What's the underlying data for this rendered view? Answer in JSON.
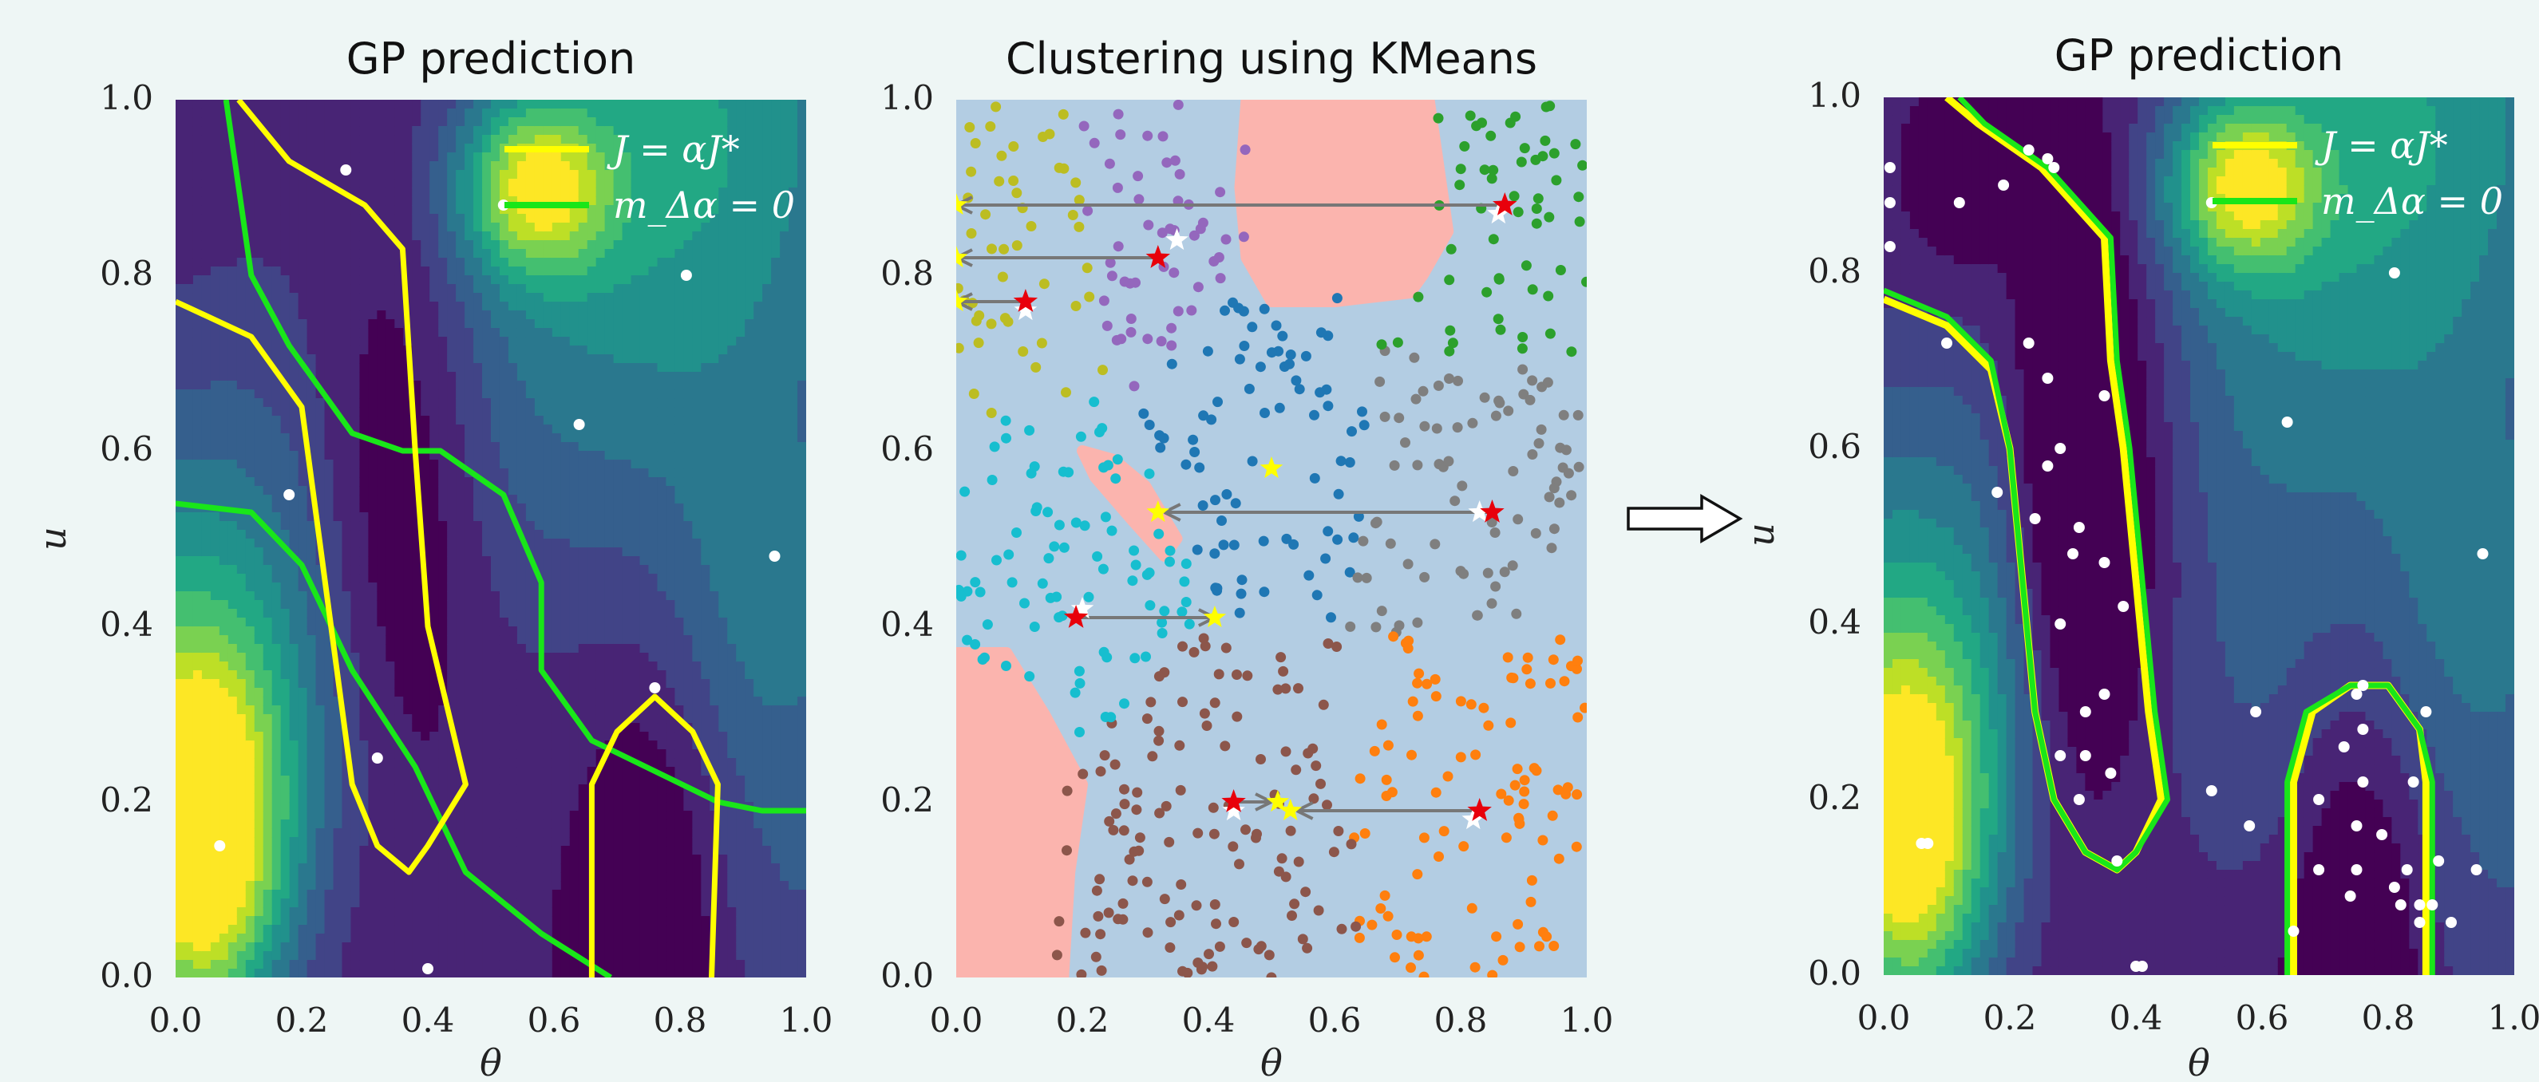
{
  "colors": {
    "viridis": [
      "#440154",
      "#482475",
      "#414487",
      "#355f8d",
      "#2a788e",
      "#21918c",
      "#22a884",
      "#44bf70",
      "#7ad151",
      "#bddf26",
      "#fde725"
    ],
    "cluster_bg": "#b3cde3",
    "infeasible": "#fbb4ae",
    "level_set": "#ffff00",
    "zero_mean": "#19e619",
    "arrow": "#777777",
    "star_red": "#e8000b",
    "star_yellow": "#ffff00",
    "star_white": "#ffffff"
  },
  "panels": [
    {
      "title": "GP prediction",
      "xlabel": "θ",
      "ylabel": "u"
    },
    {
      "title": "Clustering using KMeans",
      "xlabel": "θ",
      "ylabel": ""
    },
    {
      "title": "GP prediction",
      "xlabel": "θ",
      "ylabel": "u"
    }
  ],
  "legend": {
    "item1": "J = αJ*",
    "item2": "m_Δα = 0"
  },
  "axis_ticks": {
    "x": [
      "0.0",
      "0.2",
      "0.4",
      "0.6",
      "0.8",
      "1.0"
    ],
    "y": [
      "0.0",
      "0.2",
      "0.4",
      "0.6",
      "0.8",
      "1.0"
    ]
  },
  "arrow_glyph": "⇨",
  "chart_data": [
    {
      "type": "heatmap",
      "title": "GP prediction",
      "xlabel": "θ",
      "ylabel": "u",
      "xlim": [
        0,
        1
      ],
      "ylim": [
        0,
        1
      ],
      "legend": [
        "J = αJ*",
        "m_Δα = 0"
      ],
      "legend_placement": "top-right",
      "training_points": [
        [
          0.07,
          0.15
        ],
        [
          0.4,
          0.01
        ],
        [
          0.32,
          0.25
        ],
        [
          0.76,
          0.33
        ],
        [
          0.18,
          0.55
        ],
        [
          0.64,
          0.63
        ],
        [
          0.81,
          0.8
        ],
        [
          0.27,
          0.92
        ],
        [
          0.52,
          0.88
        ],
        [
          0.95,
          0.48
        ]
      ],
      "level_set_J": [
        [
          [
            0.1,
            1.0
          ],
          [
            0.18,
            0.93
          ],
          [
            0.3,
            0.88
          ],
          [
            0.36,
            0.83
          ],
          [
            0.38,
            0.6
          ],
          [
            0.4,
            0.4
          ],
          [
            0.46,
            0.22
          ],
          [
            0.4,
            0.15
          ],
          [
            0.37,
            0.12
          ],
          [
            0.32,
            0.15
          ],
          [
            0.28,
            0.22
          ],
          [
            0.2,
            0.65
          ],
          [
            0.12,
            0.73
          ],
          [
            0.0,
            0.77
          ]
        ],
        [
          [
            0.66,
            0.0
          ],
          [
            0.66,
            0.22
          ],
          [
            0.7,
            0.28
          ],
          [
            0.76,
            0.32
          ],
          [
            0.82,
            0.28
          ],
          [
            0.86,
            0.22
          ],
          [
            0.85,
            0.0
          ]
        ]
      ],
      "zero_mean_contour": [
        [
          [
            0.08,
            1.0
          ],
          [
            0.12,
            0.8
          ],
          [
            0.18,
            0.72
          ],
          [
            0.28,
            0.62
          ],
          [
            0.36,
            0.6
          ],
          [
            0.42,
            0.6
          ],
          [
            0.52,
            0.55
          ],
          [
            0.58,
            0.45
          ],
          [
            0.58,
            0.35
          ],
          [
            0.66,
            0.27
          ],
          [
            0.86,
            0.2
          ],
          [
            0.93,
            0.19
          ],
          [
            1.0,
            0.19
          ]
        ],
        [
          [
            0.0,
            0.54
          ],
          [
            0.12,
            0.53
          ],
          [
            0.2,
            0.47
          ],
          [
            0.28,
            0.35
          ],
          [
            0.38,
            0.24
          ],
          [
            0.46,
            0.12
          ],
          [
            0.58,
            0.05
          ],
          [
            0.69,
            0.0
          ]
        ]
      ]
    },
    {
      "type": "scatter",
      "title": "Clustering using KMeans",
      "xlabel": "θ",
      "xlim": [
        0,
        1
      ],
      "ylim": [
        0,
        1
      ],
      "cluster_colors": [
        "#bcbd22",
        "#9467bd",
        "#2ca02c",
        "#1f77b4",
        "#7f7f7f",
        "#17becf",
        "#8c564b",
        "#ff7f0e"
      ],
      "cluster_centers": [
        [
          0.1,
          0.82
        ],
        [
          0.32,
          0.86
        ],
        [
          0.83,
          0.82
        ],
        [
          0.5,
          0.66
        ],
        [
          0.82,
          0.6
        ],
        [
          0.15,
          0.47
        ],
        [
          0.4,
          0.16
        ],
        [
          0.85,
          0.2
        ]
      ],
      "red_stars": [
        [
          0.87,
          0.88
        ],
        [
          0.32,
          0.82
        ],
        [
          0.11,
          0.77
        ],
        [
          0.85,
          0.53
        ],
        [
          0.19,
          0.41
        ],
        [
          0.44,
          0.2
        ],
        [
          0.83,
          0.19
        ]
      ],
      "yellow_stars": [
        [
          0.0,
          0.88
        ],
        [
          0.0,
          0.82
        ],
        [
          0.0,
          0.77
        ],
        [
          0.5,
          0.58
        ],
        [
          0.32,
          0.53
        ],
        [
          0.41,
          0.41
        ],
        [
          0.51,
          0.2
        ],
        [
          0.53,
          0.19
        ]
      ],
      "white_stars": [
        [
          0.86,
          0.87
        ],
        [
          0.35,
          0.84
        ],
        [
          0.11,
          0.76
        ],
        [
          0.83,
          0.53
        ],
        [
          0.2,
          0.42
        ],
        [
          0.44,
          0.19
        ],
        [
          0.82,
          0.18
        ]
      ],
      "arrows": [
        [
          [
            0.87,
            0.88
          ],
          [
            0.0,
            0.88
          ]
        ],
        [
          [
            0.32,
            0.82
          ],
          [
            0.0,
            0.82
          ]
        ],
        [
          [
            0.11,
            0.77
          ],
          [
            0.0,
            0.77
          ]
        ],
        [
          [
            0.85,
            0.53
          ],
          [
            0.33,
            0.53
          ]
        ],
        [
          [
            0.19,
            0.41
          ],
          [
            0.41,
            0.41
          ]
        ],
        [
          [
            0.44,
            0.2
          ],
          [
            0.5,
            0.2
          ]
        ],
        [
          [
            0.83,
            0.19
          ],
          [
            0.54,
            0.19
          ]
        ]
      ]
    },
    {
      "type": "heatmap",
      "title": "GP prediction",
      "xlabel": "θ",
      "ylabel": "u",
      "xlim": [
        0,
        1
      ],
      "ylim": [
        0,
        1
      ],
      "legend": [
        "J = αJ*",
        "m_Δα = 0"
      ],
      "legend_placement": "top-right",
      "training_points": [
        [
          0.07,
          0.15
        ],
        [
          0.4,
          0.01
        ],
        [
          0.32,
          0.25
        ],
        [
          0.76,
          0.33
        ],
        [
          0.18,
          0.55
        ],
        [
          0.64,
          0.63
        ],
        [
          0.81,
          0.8
        ],
        [
          0.27,
          0.92
        ],
        [
          0.52,
          0.88
        ],
        [
          0.95,
          0.48
        ],
        [
          0.23,
          0.94
        ],
        [
          0.26,
          0.93
        ],
        [
          0.19,
          0.9
        ],
        [
          0.12,
          0.88
        ],
        [
          0.01,
          0.92
        ],
        [
          0.01,
          0.88
        ],
        [
          0.01,
          0.83
        ],
        [
          0.1,
          0.72
        ],
        [
          0.23,
          0.72
        ],
        [
          0.26,
          0.68
        ],
        [
          0.35,
          0.66
        ],
        [
          0.28,
          0.6
        ],
        [
          0.26,
          0.58
        ],
        [
          0.24,
          0.52
        ],
        [
          0.3,
          0.48
        ],
        [
          0.31,
          0.51
        ],
        [
          0.35,
          0.47
        ],
        [
          0.28,
          0.4
        ],
        [
          0.38,
          0.42
        ],
        [
          0.35,
          0.32
        ],
        [
          0.32,
          0.3
        ],
        [
          0.28,
          0.25
        ],
        [
          0.36,
          0.23
        ],
        [
          0.31,
          0.2
        ],
        [
          0.37,
          0.13
        ],
        [
          0.41,
          0.01
        ],
        [
          0.06,
          0.15
        ],
        [
          0.52,
          0.21
        ],
        [
          0.58,
          0.17
        ],
        [
          0.59,
          0.3
        ],
        [
          0.69,
          0.12
        ],
        [
          0.75,
          0.32
        ],
        [
          0.76,
          0.28
        ],
        [
          0.73,
          0.26
        ],
        [
          0.69,
          0.2
        ],
        [
          0.76,
          0.22
        ],
        [
          0.75,
          0.17
        ],
        [
          0.86,
          0.3
        ],
        [
          0.84,
          0.22
        ],
        [
          0.88,
          0.13
        ],
        [
          0.83,
          0.12
        ],
        [
          0.85,
          0.08
        ],
        [
          0.82,
          0.08
        ],
        [
          0.75,
          0.12
        ],
        [
          0.74,
          0.09
        ],
        [
          0.65,
          0.05
        ],
        [
          0.79,
          0.16
        ],
        [
          0.81,
          0.1
        ],
        [
          0.87,
          0.08
        ],
        [
          0.94,
          0.12
        ],
        [
          0.9,
          0.06
        ],
        [
          0.85,
          0.06
        ]
      ],
      "level_set_J": [
        [
          [
            0.0,
            0.77
          ],
          [
            0.1,
            0.74
          ],
          [
            0.17,
            0.69
          ],
          [
            0.2,
            0.6
          ],
          [
            0.22,
            0.45
          ],
          [
            0.24,
            0.3
          ],
          [
            0.27,
            0.2
          ],
          [
            0.32,
            0.14
          ],
          [
            0.37,
            0.12
          ],
          [
            0.4,
            0.14
          ],
          [
            0.44,
            0.2
          ],
          [
            0.42,
            0.3
          ],
          [
            0.4,
            0.45
          ],
          [
            0.38,
            0.6
          ],
          [
            0.36,
            0.7
          ],
          [
            0.35,
            0.84
          ],
          [
            0.25,
            0.92
          ],
          [
            0.15,
            0.97
          ],
          [
            0.1,
            1.0
          ]
        ],
        [
          [
            0.65,
            0.0
          ],
          [
            0.65,
            0.22
          ],
          [
            0.68,
            0.3
          ],
          [
            0.74,
            0.33
          ],
          [
            0.8,
            0.33
          ],
          [
            0.85,
            0.28
          ],
          [
            0.86,
            0.22
          ],
          [
            0.86,
            0.0
          ]
        ]
      ],
      "zero_mean_contour": [
        [
          [
            0.0,
            0.78
          ],
          [
            0.1,
            0.75
          ],
          [
            0.17,
            0.7
          ],
          [
            0.2,
            0.6
          ],
          [
            0.22,
            0.45
          ],
          [
            0.24,
            0.3
          ],
          [
            0.27,
            0.2
          ],
          [
            0.32,
            0.14
          ],
          [
            0.37,
            0.12
          ],
          [
            0.4,
            0.14
          ],
          [
            0.45,
            0.2
          ],
          [
            0.43,
            0.3
          ],
          [
            0.41,
            0.45
          ],
          [
            0.39,
            0.6
          ],
          [
            0.37,
            0.7
          ],
          [
            0.36,
            0.84
          ],
          [
            0.26,
            0.92
          ],
          [
            0.16,
            0.97
          ],
          [
            0.12,
            1.0
          ]
        ],
        [
          [
            0.64,
            0.0
          ],
          [
            0.64,
            0.22
          ],
          [
            0.67,
            0.3
          ],
          [
            0.74,
            0.33
          ],
          [
            0.8,
            0.33
          ],
          [
            0.85,
            0.28
          ],
          [
            0.87,
            0.22
          ],
          [
            0.87,
            0.0
          ]
        ]
      ]
    }
  ]
}
